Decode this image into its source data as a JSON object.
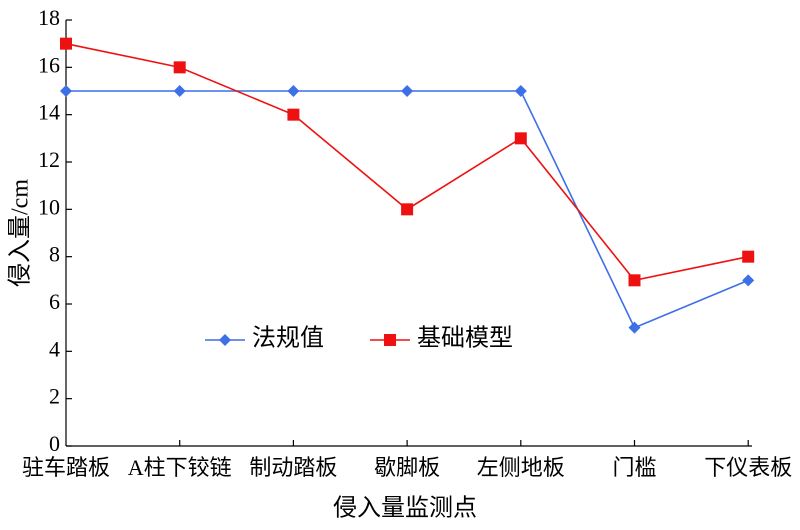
{
  "chart_data": {
    "type": "line",
    "x_label": "侵入量监测点",
    "y_label": "侵入量/cm",
    "categories": [
      "驻车踏板",
      "A柱下铰链",
      "制动踏板",
      "歇脚板",
      "左侧地板",
      "门槛",
      "下仪表板"
    ],
    "series": [
      {
        "name": "法规值",
        "color": "#3d6fe6",
        "marker": "diamond",
        "values": [
          15,
          15,
          15,
          15,
          15,
          5,
          7
        ]
      },
      {
        "name": "基础模型",
        "color": "#ee1111",
        "marker": "square",
        "values": [
          17,
          16,
          14,
          10,
          13,
          7,
          8
        ]
      }
    ],
    "ylim": [
      0,
      18
    ],
    "yticks": [
      0,
      2,
      4,
      6,
      8,
      10,
      12,
      14,
      16,
      18
    ],
    "grid": false,
    "legend": "center-left"
  }
}
